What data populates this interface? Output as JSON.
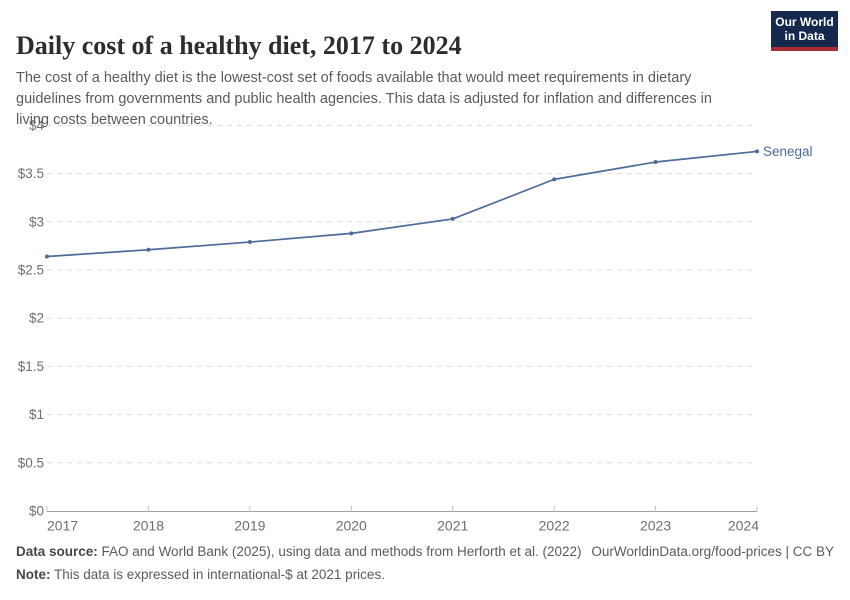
{
  "header": {
    "title": "Daily cost of a healthy diet, 2017 to 2024",
    "subtitle": "The cost of a healthy diet is the lowest-cost set of foods available that would meet requirements in dietary guidelines from governments and public health agencies. This data is adjusted for inflation and differences in living costs between countries.",
    "logo": {
      "line1": "Our World",
      "line2": "in Data"
    }
  },
  "chart_data": {
    "type": "line",
    "title": "Daily cost of a healthy diet, 2017 to 2024",
    "x": [
      2017,
      2018,
      2019,
      2020,
      2021,
      2022,
      2023,
      2024
    ],
    "x_tick_labels": [
      "2017",
      "2018",
      "2019",
      "2020",
      "2021",
      "2022",
      "2023",
      "2024"
    ],
    "series": [
      {
        "name": "Senegal",
        "values": [
          2.64,
          2.71,
          2.79,
          2.88,
          3.03,
          3.44,
          3.62,
          3.73
        ],
        "color": "#4c6a9c"
      }
    ],
    "unit_prefix": "$",
    "ylim": [
      0,
      4
    ],
    "y_tick_step": 0.5,
    "y_tick_labels": [
      "$0",
      "$0.5",
      "$1",
      "$1.5",
      "$2",
      "$2.5",
      "$3",
      "$3.5",
      "$4"
    ],
    "grid": "horizontal-dashed",
    "legend_position": "end-of-line-label",
    "end_label": "Senegal"
  },
  "footer": {
    "source_label": "Data source:",
    "source_text": " FAO and World Bank (2025), using data and methods from Herforth et al. (2022)",
    "credit": "OurWorldinData.org/food-prices | CC BY",
    "note_label": "Note:",
    "note_text": " This data is expressed in international-$ at 2021 prices."
  },
  "colors": {
    "line": "#4c6a9c",
    "grid": "#dcdcdc",
    "axis": "#a1a1a1",
    "axis_tick": "#c4c4c4",
    "tick_label": "#6e6e6e",
    "title": "#2d2d2d",
    "subtitle": "#5b5b5b",
    "logo_navy": "#14294d",
    "logo_red": "#a82b38"
  }
}
